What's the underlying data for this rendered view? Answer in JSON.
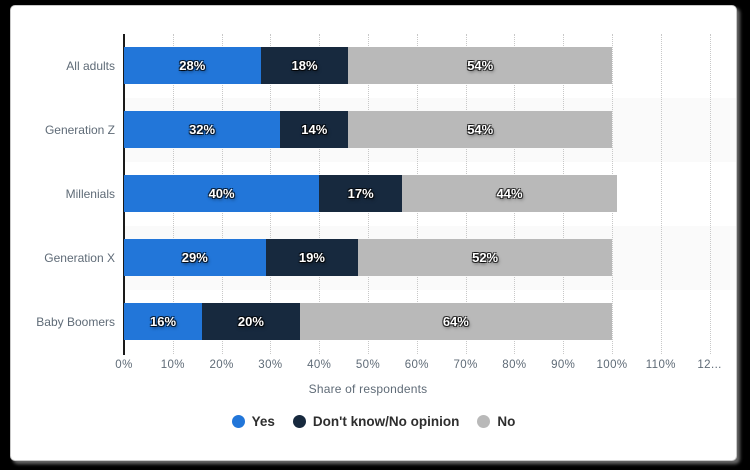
{
  "frame": {
    "background_color": "#000000"
  },
  "card": {
    "background_color": "#ffffff",
    "border_color": "#c9c9c9"
  },
  "chart_data": {
    "type": "bar",
    "orientation": "horizontal",
    "stacked": true,
    "title": "",
    "categories": [
      "All adults",
      "Generation Z",
      "Millenials",
      "Generation X",
      "Baby Boomers"
    ],
    "series": [
      {
        "name": "Yes",
        "color": "#2276d9",
        "values": [
          28,
          32,
          40,
          29,
          16
        ]
      },
      {
        "name": "Don't know/No opinion",
        "color": "#17293e",
        "values": [
          18,
          14,
          17,
          19,
          20
        ]
      },
      {
        "name": "No",
        "color": "#b9b9b9",
        "values": [
          54,
          54,
          44,
          52,
          64
        ]
      }
    ],
    "data_label_suffix": "%",
    "xlabel": "Share of respondents",
    "x_ticks": [
      "0%",
      "10%",
      "20%",
      "30%",
      "40%",
      "50%",
      "60%",
      "70%",
      "80%",
      "90%",
      "100%",
      "110%",
      "12..."
    ],
    "x_tick_values": [
      0,
      10,
      20,
      30,
      40,
      50,
      60,
      70,
      80,
      90,
      100,
      110,
      120
    ],
    "xlim": [
      0,
      123
    ],
    "grid": true,
    "gridline_style": "dotted",
    "legend_position": "bottom",
    "row_band_colors": [
      "#ffffff",
      "#fafafa"
    ]
  },
  "styles": {
    "axis_text_color": "#5f6b77",
    "legend_text_color": "#2e2e2e",
    "gridline_color": "#c8c8c8",
    "axis_line_color": "#1a1a1a",
    "bar_label_color": "#ffffff"
  }
}
